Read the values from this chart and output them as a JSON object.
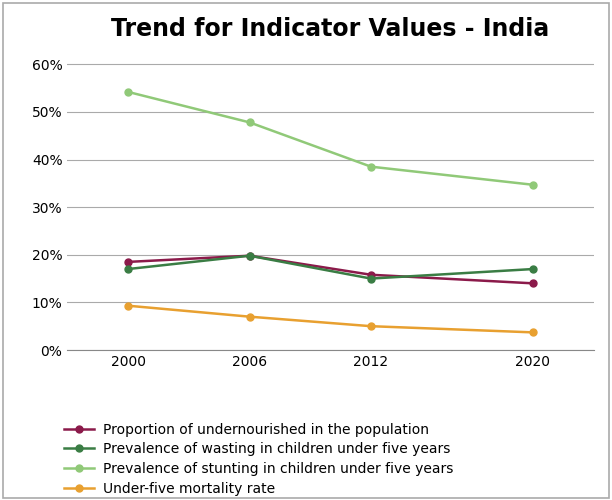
{
  "title": "Trend for Indicator Values - India",
  "x_values": [
    2000,
    2006,
    2012,
    2020
  ],
  "x_ticks": [
    2000,
    2006,
    2012,
    2020
  ],
  "series": [
    {
      "label": "Proportion of undernourished in the population",
      "values": [
        18.5,
        19.8,
        15.8,
        14.0
      ],
      "color": "#8B1A4A",
      "marker": "o",
      "linewidth": 1.8,
      "markersize": 5
    },
    {
      "label": "Prevalence of wasting in children under five years",
      "values": [
        17.0,
        19.8,
        15.0,
        17.0
      ],
      "color": "#3A7D44",
      "marker": "o",
      "linewidth": 1.8,
      "markersize": 5
    },
    {
      "label": "Prevalence of stunting in children under five years",
      "values": [
        54.2,
        47.8,
        38.5,
        34.7
      ],
      "color": "#90C978",
      "marker": "o",
      "linewidth": 1.8,
      "markersize": 5
    },
    {
      "label": "Under-five mortality rate",
      "values": [
        9.3,
        7.0,
        5.0,
        3.7
      ],
      "color": "#E8A030",
      "marker": "o",
      "linewidth": 1.8,
      "markersize": 5
    }
  ],
  "ylim": [
    0,
    63
  ],
  "yticks": [
    0,
    10,
    20,
    30,
    40,
    50,
    60
  ],
  "ytick_labels": [
    "0%",
    "10%",
    "20%",
    "30%",
    "40%",
    "50%",
    "60%"
  ],
  "xlim": [
    1997,
    2023
  ],
  "background_color": "#FFFFFF",
  "grid_color": "#AAAAAA",
  "title_fontsize": 17,
  "tick_fontsize": 10,
  "legend_fontsize": 10,
  "outer_border_color": "#AAAAAA"
}
